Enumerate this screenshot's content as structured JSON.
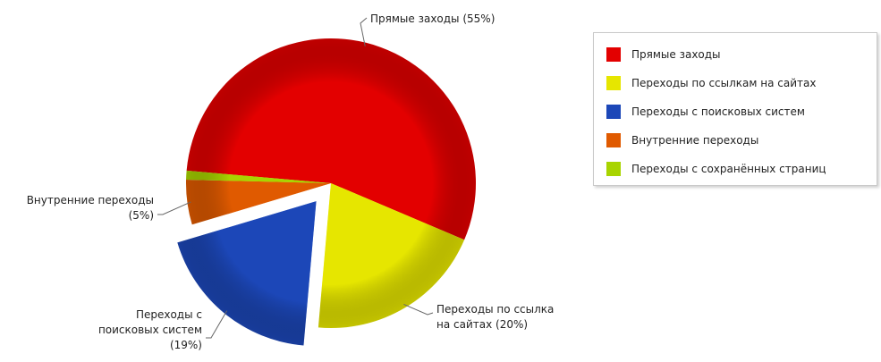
{
  "chart_data": {
    "type": "pie",
    "title": "",
    "exploded": "Переходы с поисковых систем",
    "slices": [
      {
        "name": "Прямые заходы",
        "value": 55,
        "color": "#e30000",
        "label_lines": [
          "Прямые заходы (55%)"
        ]
      },
      {
        "name": "Переходы по ссылкам на сайтах",
        "value": 20,
        "color": "#e6e600",
        "label_lines": [
          "Переходы по ссылкам",
          "на сайтах (20%)"
        ]
      },
      {
        "name": "Переходы с поисковых систем",
        "value": 19,
        "color": "#1c47b8",
        "label_lines": [
          "Переходы с",
          "поисковых систем",
          "(19%)"
        ]
      },
      {
        "name": "Внутренние переходы",
        "value": 5,
        "color": "#e05a00",
        "label_lines": [
          "Внутренние переходы",
          "(5%)"
        ]
      },
      {
        "name": "Переходы с сохранённых страниц",
        "value": 1,
        "color": "#a8d400",
        "label_lines": []
      }
    ]
  },
  "legend": {
    "items": [
      {
        "label": "Прямые заходы",
        "color": "#e30000"
      },
      {
        "label": "Переходы по ссылкам на сайтах",
        "color": "#e6e600"
      },
      {
        "label": "Переходы с поисковых систем",
        "color": "#1c47b8"
      },
      {
        "label": "Внутренние переходы",
        "color": "#e05a00"
      },
      {
        "label": "Переходы с сохранённых страниц",
        "color": "#a8d400"
      }
    ]
  }
}
